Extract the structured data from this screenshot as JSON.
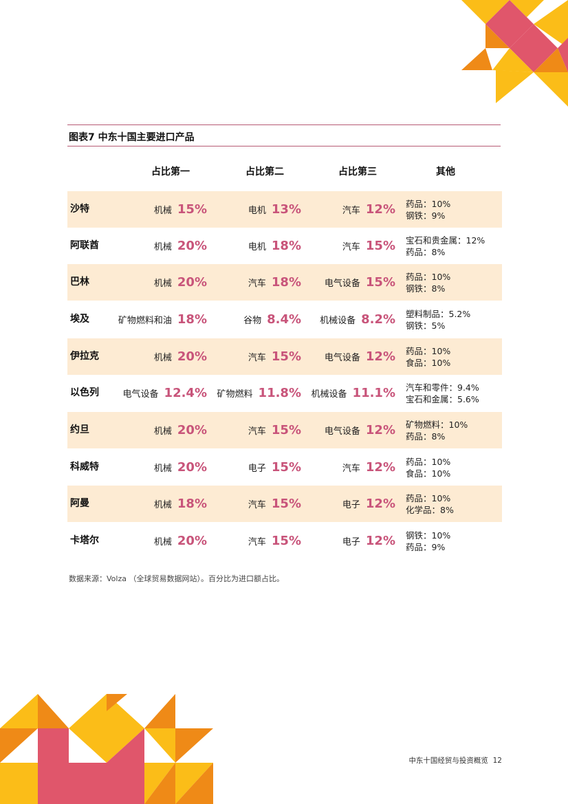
{
  "figure_title": "图表7  中东十国主要进口产品",
  "headers": [
    "占比第一",
    "占比第二",
    "占比第三",
    "其他"
  ],
  "rows": [
    {
      "country": "沙特",
      "p1": {
        "label": "机械",
        "pct": "15%"
      },
      "p2": {
        "label": "电机",
        "pct": "13%"
      },
      "p3": {
        "label": "汽车",
        "pct": "12%"
      },
      "other": [
        "药品：10%",
        "钢铁：9%"
      ]
    },
    {
      "country": "阿联酋",
      "p1": {
        "label": "机械",
        "pct": "20%"
      },
      "p2": {
        "label": "电机",
        "pct": "18%"
      },
      "p3": {
        "label": "汽车",
        "pct": "15%"
      },
      "other": [
        "宝石和贵金属：12%",
        "药品：8%"
      ]
    },
    {
      "country": "巴林",
      "p1": {
        "label": "机械",
        "pct": "20%"
      },
      "p2": {
        "label": "汽车",
        "pct": "18%"
      },
      "p3": {
        "label": "电气设备",
        "pct": "15%"
      },
      "other": [
        "药品：10%",
        "钢铁：8%"
      ]
    },
    {
      "country": "埃及",
      "p1": {
        "label": "矿物燃料和油",
        "pct": "18%"
      },
      "p2": {
        "label": "谷物",
        "pct": "8.4%"
      },
      "p3": {
        "label": "机械设备",
        "pct": "8.2%"
      },
      "other": [
        "塑料制品：5.2%",
        "钢铁：5%"
      ]
    },
    {
      "country": "伊拉克",
      "p1": {
        "label": "机械",
        "pct": "20%"
      },
      "p2": {
        "label": "汽车",
        "pct": "15%"
      },
      "p3": {
        "label": "电气设备",
        "pct": "12%"
      },
      "other": [
        "药品：10%",
        "食品：10%"
      ]
    },
    {
      "country": "以色列",
      "p1": {
        "label": "电气设备",
        "pct": "12.4%"
      },
      "p2": {
        "label": "矿物燃料",
        "pct": "11.8%"
      },
      "p3": {
        "label": "机械设备",
        "pct": "11.1%"
      },
      "other": [
        "汽车和零件：9.4%",
        "宝石和金属：5.6%"
      ]
    },
    {
      "country": "约旦",
      "p1": {
        "label": "机械",
        "pct": "20%"
      },
      "p2": {
        "label": "汽车",
        "pct": "15%"
      },
      "p3": {
        "label": "电气设备",
        "pct": "12%"
      },
      "other": [
        "矿物燃料：10%",
        "药品：8%"
      ]
    },
    {
      "country": "科威特",
      "p1": {
        "label": "机械",
        "pct": "20%"
      },
      "p2": {
        "label": "电子",
        "pct": "15%"
      },
      "p3": {
        "label": "汽车",
        "pct": "12%"
      },
      "other": [
        "药品：10%",
        "食品：10%"
      ]
    },
    {
      "country": "阿曼",
      "p1": {
        "label": "机械",
        "pct": "18%"
      },
      "p2": {
        "label": "汽车",
        "pct": "15%"
      },
      "p3": {
        "label": "电子",
        "pct": "12%"
      },
      "other": [
        "药品：10%",
        "化学品：8%"
      ]
    },
    {
      "country": "卡塔尔",
      "p1": {
        "label": "机械",
        "pct": "20%"
      },
      "p2": {
        "label": "汽车",
        "pct": "15%"
      },
      "p3": {
        "label": "电子",
        "pct": "12%"
      },
      "other": [
        "钢铁：10%",
        "药品：9%"
      ]
    }
  ],
  "source_note": "数据来源：Volza （全球贸易数据网站）。百分比为进口额占比。",
  "footer": {
    "title": "中东十国经贸与投资概览",
    "page_number": "12"
  },
  "colors": {
    "accent_pink": "#c8547a",
    "row_shade": "#fdebd3",
    "rule": "#b65a74",
    "deco_yellow": "#fbbd18",
    "deco_orange": "#ef8a17",
    "deco_pink": "#e0566b"
  }
}
